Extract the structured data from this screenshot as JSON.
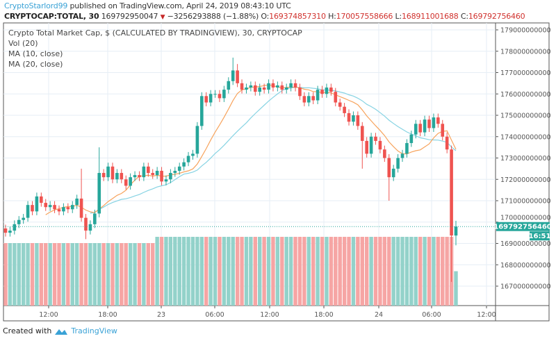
{
  "header": {
    "author": "CryptoStarlord99",
    "published": "published on TradingView.com, April 24, 2019 08:43:10 UTC",
    "symbol": "CRYPTOCAP:TOTAL, 30",
    "last": "169792950047",
    "change": "−3256293888 (−1.88%)",
    "o_label": "O:",
    "o": "169374857310",
    "h_label": "H:",
    "h": "170057558666",
    "l_label": "L:",
    "l": "168911001688",
    "c_label": "C:",
    "c": "169792756460"
  },
  "legend": {
    "title": "Crypto Total Market Cap, $ (CALCULATED BY TRADINGVIEW), 30, CRYPTOCAP",
    "vol": "Vol (20)",
    "ma10": "MA (10, close)",
    "ma20": "MA (20, close)"
  },
  "price_tag": "169792756460",
  "time_tag": "16:51",
  "footer": {
    "created": "Created with",
    "brand": "TradingView"
  },
  "colors": {
    "up": "#26a69a",
    "down": "#ef5350",
    "vol_up": "#93d2ca",
    "vol_down": "#f6a5a4",
    "ma10": "#f7a35c",
    "ma20": "#86d3e3",
    "grid": "#e6eef5"
  },
  "chart_data": {
    "type": "candlestick",
    "ylim": [
      166.3,
      179.3
    ],
    "y_unit_multiplier": 1000000000,
    "y_ticks": [
      "179000000000",
      "178000000000",
      "177000000000",
      "176000000000",
      "175000000000",
      "174000000000",
      "173000000000",
      "172000000000",
      "171000000000",
      "170000000000",
      "169000000000",
      "168000000000",
      "167000000000"
    ],
    "x_ticks": [
      "12:00",
      "18:00",
      "23",
      "06:00",
      "12:00",
      "18:00",
      "24",
      "06:00",
      "12:00"
    ],
    "grid": true,
    "close": [
      169.5,
      169.6,
      169.9,
      170.1,
      170.2,
      170.8,
      170.5,
      171.2,
      170.9,
      170.7,
      170.8,
      170.6,
      170.5,
      170.7,
      170.6,
      170.8,
      171.1,
      170.2,
      169.6,
      169.9,
      170.4,
      172.3,
      172.1,
      172.6,
      172.0,
      172.3,
      172.0,
      171.7,
      172.1,
      172.2,
      172.1,
      172.6,
      172.3,
      172.2,
      172.4,
      171.9,
      172.0,
      172.3,
      172.4,
      172.6,
      172.8,
      173.1,
      173.2,
      174.5,
      175.9,
      175.6,
      176.0,
      176.0,
      175.8,
      176.2,
      176.6,
      177.1,
      176.5,
      176.2,
      176.3,
      176.4,
      176.1,
      176.3,
      176.2,
      176.5,
      176.3,
      176.4,
      176.2,
      176.3,
      176.5,
      176.3,
      175.9,
      175.6,
      175.9,
      175.7,
      176.2,
      176.0,
      176.3,
      176.1,
      175.6,
      175.4,
      175.1,
      174.7,
      175.0,
      174.5,
      173.8,
      173.2,
      174.0,
      173.8,
      173.4,
      173.0,
      172.1,
      172.5,
      173.0,
      173.2,
      173.7,
      174.1,
      174.6,
      174.2,
      174.8,
      174.4,
      174.9,
      174.6,
      174.0,
      173.4,
      169.37,
      169.79
    ],
    "first_open": 169.7,
    "high_overrides": {
      "17": 172.5,
      "21": 173.5,
      "51": 177.7,
      "52": 177.4,
      "99": 174.2,
      "101": 170.06
    },
    "low_overrides": {
      "18": 169.2,
      "80": 172.5,
      "86": 171.0,
      "100": 167.2,
      "101": 168.91
    },
    "volume": [
      1,
      1,
      1,
      1,
      1,
      1,
      1,
      1,
      1,
      1,
      1,
      1,
      1,
      1,
      1,
      1,
      1,
      1,
      1,
      1,
      1,
      1,
      1,
      1,
      1,
      1,
      1,
      1,
      1,
      1,
      1,
      1,
      1,
      1,
      1.1,
      1.1,
      1.1,
      1.1,
      1.1,
      1.1,
      1.1,
      1.1,
      1.1,
      1.1,
      1.1,
      1.1,
      1.1,
      1.1,
      1.1,
      1.1,
      1.1,
      1.1,
      1.1,
      1.1,
      1.1,
      1.1,
      1.1,
      1.1,
      1.1,
      1.1,
      1.1,
      1.1,
      1.1,
      1.1,
      1.1,
      1.1,
      1.1,
      1.1,
      1.1,
      1.1,
      1.1,
      1.1,
      1.1,
      1.1,
      1.1,
      1.1,
      1.1,
      1.1,
      1.1,
      1.1,
      1.1,
      1.1,
      1.1,
      1.1,
      1.1,
      1.1,
      1.1,
      1.1,
      1.1,
      1.1,
      1.1,
      1.1,
      1.1,
      1.1,
      1.1,
      1.1,
      1.1,
      1.1,
      1.1,
      1.1,
      1.1,
      0.55
    ]
  }
}
